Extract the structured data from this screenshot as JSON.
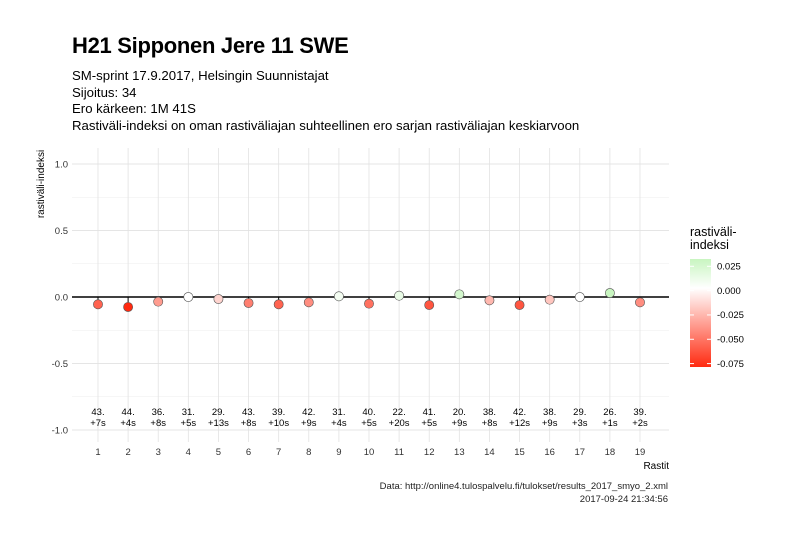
{
  "title": "H21 Sipponen Jere 11 SWE",
  "subtitle_lines": [
    "SM-sprint 17.9.2017, Helsingin Suunnistajat",
    "Sijoitus: 34",
    "Ero kärkeen: 1M 41S",
    "Rastiväli-indeksi on oman rastiväliajan suhteellinen ero sarjan rastiväliajan keskiarvoon"
  ],
  "caption": {
    "source": "Data: http://online4.tulospalvelu.fi/tulokset/results_2017_smyo_2.xml",
    "timestamp": "2017-09-24 21:34:56"
  },
  "legend": {
    "title_line1": "rastiväli-",
    "title_line2": "indeksi",
    "ticks": [
      "0.025",
      "0.000",
      "-0.025",
      "-0.050",
      "-0.075"
    ],
    "colors": {
      "high": "#c8f5c0",
      "mid": "#ffffff",
      "low": "#ff2a10"
    }
  },
  "chart_data": {
    "type": "scatter",
    "xlabel": "Rastit",
    "ylabel": "rastiväli-indeksi",
    "ylim": [
      -1.0,
      1.0
    ],
    "yticks": [
      "1.0",
      "0.5",
      "0.0",
      "-0.5",
      "-1.0"
    ],
    "xticks": [
      "1",
      "2",
      "3",
      "4",
      "5",
      "6",
      "7",
      "8",
      "9",
      "10",
      "11",
      "12",
      "13",
      "14",
      "15",
      "16",
      "17",
      "18",
      "19"
    ],
    "grid": true,
    "legend_position": "right",
    "colorscale_range": [
      -0.075,
      0.025
    ],
    "points": [
      {
        "x": 1,
        "y": -0.055,
        "label1": "43.",
        "label2": "+7s"
      },
      {
        "x": 2,
        "y": -0.075,
        "label1": "44.",
        "label2": "+4s"
      },
      {
        "x": 3,
        "y": -0.035,
        "label1": "36.",
        "label2": "+8s"
      },
      {
        "x": 4,
        "y": 0.0,
        "label1": "31.",
        "label2": "+5s"
      },
      {
        "x": 5,
        "y": -0.015,
        "label1": "29.",
        "label2": "+13s"
      },
      {
        "x": 6,
        "y": -0.045,
        "label1": "43.",
        "label2": "+8s"
      },
      {
        "x": 7,
        "y": -0.055,
        "label1": "39.",
        "label2": "+10s"
      },
      {
        "x": 8,
        "y": -0.04,
        "label1": "42.",
        "label2": "+9s"
      },
      {
        "x": 9,
        "y": 0.005,
        "label1": "31.",
        "label2": "+4s"
      },
      {
        "x": 10,
        "y": -0.05,
        "label1": "40.",
        "label2": "+5s"
      },
      {
        "x": 11,
        "y": 0.01,
        "label1": "22.",
        "label2": "+20s"
      },
      {
        "x": 12,
        "y": -0.06,
        "label1": "41.",
        "label2": "+5s"
      },
      {
        "x": 13,
        "y": 0.02,
        "label1": "20.",
        "label2": "+9s"
      },
      {
        "x": 14,
        "y": -0.025,
        "label1": "38.",
        "label2": "+8s"
      },
      {
        "x": 15,
        "y": -0.06,
        "label1": "42.",
        "label2": "+12s"
      },
      {
        "x": 16,
        "y": -0.02,
        "label1": "38.",
        "label2": "+9s"
      },
      {
        "x": 17,
        "y": 0.0,
        "label1": "29.",
        "label2": "+3s"
      },
      {
        "x": 18,
        "y": 0.03,
        "label1": "26.",
        "label2": "+1s"
      },
      {
        "x": 19,
        "y": -0.04,
        "label1": "39.",
        "label2": "+2s"
      }
    ]
  }
}
